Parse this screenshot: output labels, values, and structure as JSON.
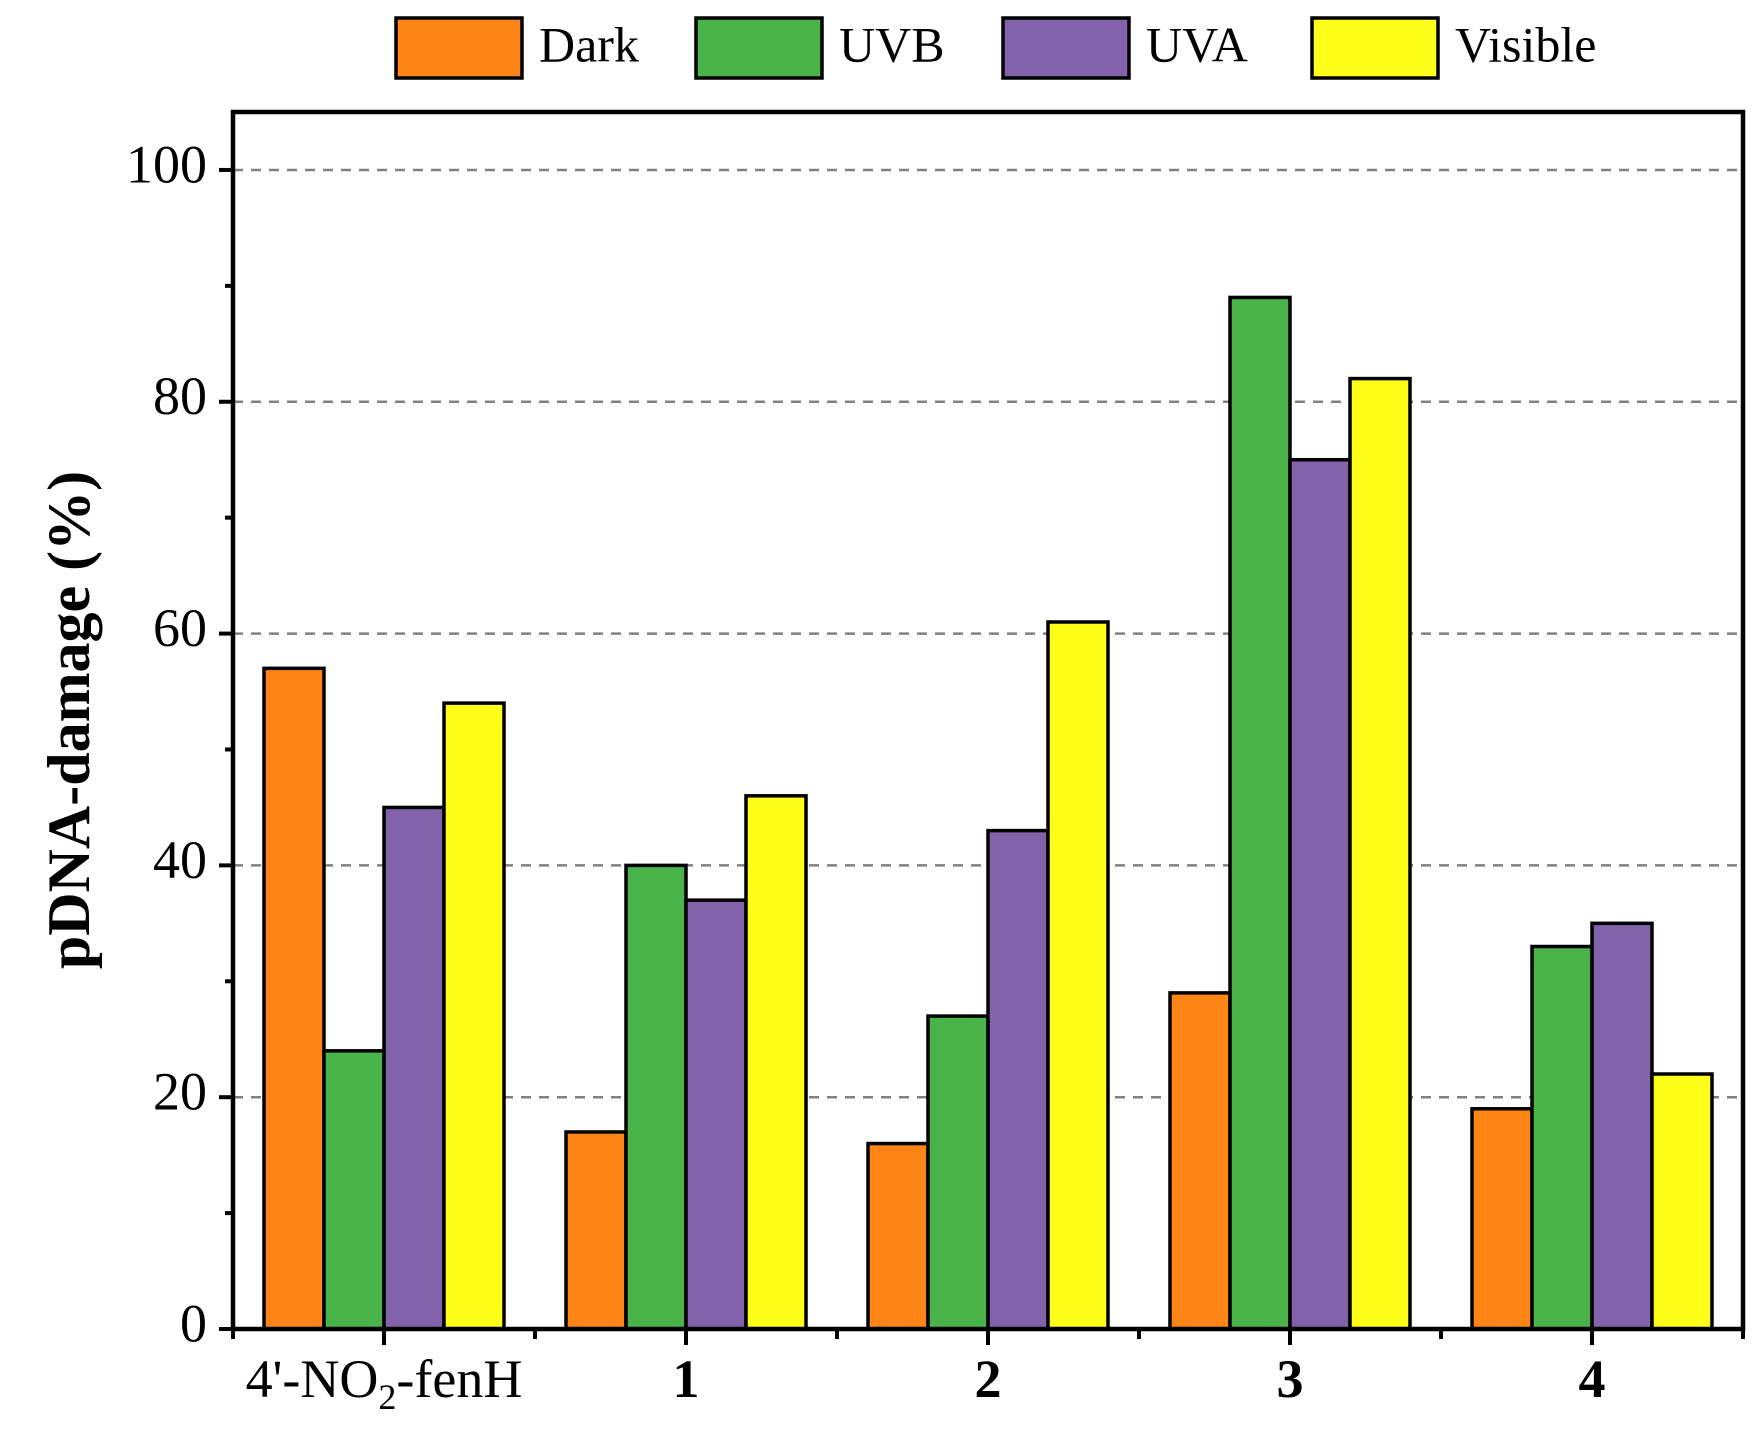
{
  "chart_data": {
    "type": "bar",
    "title": "",
    "xlabel": "",
    "ylabel": "pDNA-damage (%)",
    "ylim": [
      0,
      105
    ],
    "yticks": [
      0,
      20,
      40,
      60,
      80,
      100
    ],
    "grid": "dashed horizontal at major ticks",
    "legend_position": "top",
    "categories": [
      {
        "label": "4'-NO",
        "sub": "2",
        "suffix": "-fenH",
        "bold": false
      },
      {
        "label": "1",
        "bold": true
      },
      {
        "label": "2",
        "bold": true
      },
      {
        "label": "3",
        "bold": true
      },
      {
        "label": "4",
        "bold": true
      }
    ],
    "series": [
      {
        "name": "Dark",
        "color": "#FF8517",
        "values": [
          57,
          17,
          16,
          29,
          19
        ]
      },
      {
        "name": "UVB",
        "color": "#4AB34A",
        "values": [
          24,
          40,
          27,
          89,
          33
        ]
      },
      {
        "name": "UVA",
        "color": "#8262AA",
        "values": [
          45,
          37,
          43,
          75,
          35
        ]
      },
      {
        "name": "Visible",
        "color": "#FFFF19",
        "values": [
          54,
          46,
          61,
          82,
          22
        ]
      }
    ]
  }
}
